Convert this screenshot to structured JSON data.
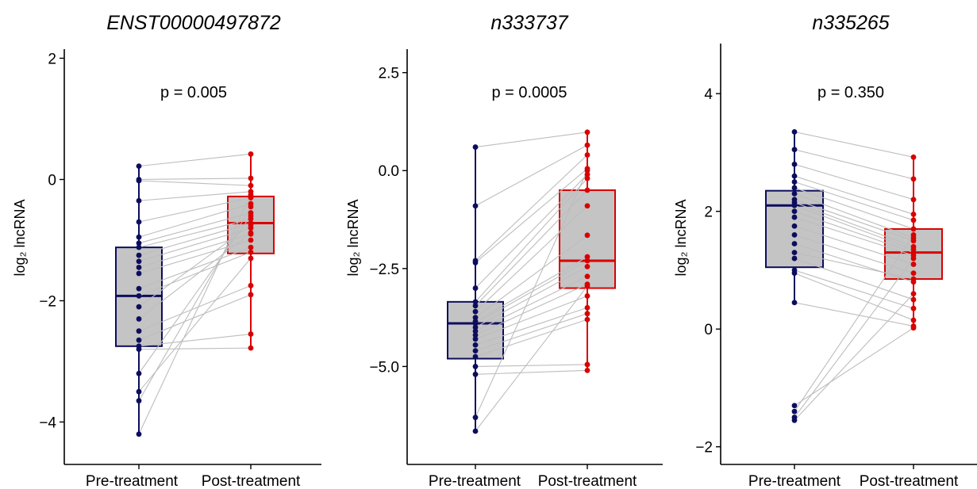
{
  "figure": {
    "colors": {
      "pre": "#0d0d5e",
      "post": "#d90000",
      "box_fill": "#c4c4c4",
      "pair_line": "#bdbdbd",
      "axis": "#000000"
    }
  },
  "chart_data": [
    {
      "type": "box",
      "title": "ENST00000497872",
      "annotation": "p = 0.005",
      "ylabel": "log₂ lncRNA",
      "categories": [
        "Pre-treatment",
        "Post-treatment"
      ],
      "yticks": [
        "2",
        "0",
        "−2",
        "−4"
      ],
      "ytick_values": [
        2,
        0,
        -2,
        -4
      ],
      "ylim": [
        -4.7,
        2.15
      ],
      "grid": false,
      "legend": "none",
      "boxes": [
        {
          "q1": -2.75,
          "median": -1.92,
          "q3": -1.12,
          "whisker_low": -4.2,
          "whisker_high": 0.22
        },
        {
          "q1": -1.22,
          "median": -0.72,
          "q3": -0.28,
          "whisker_low": -2.75,
          "whisker_high": 0.42
        }
      ],
      "series": [
        {
          "values": [
            0.22,
            0.0,
            -0.02,
            -0.35,
            -0.7,
            -0.95,
            -1.05,
            -1.12,
            -1.25,
            -1.35,
            -1.45,
            -1.55,
            -1.8,
            -1.92,
            -2.1,
            -2.3,
            -2.5,
            -2.65,
            -2.75,
            -2.8,
            -3.2,
            -3.5,
            -3.65,
            -4.2
          ]
        },
        {
          "values": [
            0.42,
            0.02,
            -0.1,
            -0.2,
            -0.3,
            -0.4,
            -0.55,
            -0.65,
            -0.72,
            -0.8,
            -0.9,
            -1.0,
            -1.12,
            -1.2,
            -0.75,
            -0.88,
            -1.75,
            -1.9,
            -2.55,
            -2.78,
            -0.6,
            -1.3,
            -0.45,
            -0.25
          ]
        }
      ]
    },
    {
      "type": "box",
      "title": "n333737",
      "annotation": "p = 0.0005",
      "ylabel": "log₂ lncRNA",
      "categories": [
        "Pre-treatment",
        "Post-treatment"
      ],
      "yticks": [
        "2.5",
        "0.0",
        "−2.5",
        "−5.0"
      ],
      "ytick_values": [
        2.5,
        0,
        -2.5,
        -5
      ],
      "ylim": [
        -7.5,
        3.1
      ],
      "grid": false,
      "legend": "none",
      "boxes": [
        {
          "q1": -4.8,
          "median": -3.9,
          "q3": -3.35,
          "whisker_low": -6.65,
          "whisker_high": 0.6
        },
        {
          "q1": -3.0,
          "median": -2.3,
          "q3": -0.5,
          "whisker_low": -5.1,
          "whisker_high": 0.98
        }
      ],
      "series": [
        {
          "values": [
            0.6,
            -0.9,
            -2.3,
            -2.35,
            -3.0,
            -3.35,
            -3.45,
            -3.6,
            -3.75,
            -3.85,
            -3.9,
            -4.0,
            -4.1,
            -4.2,
            -4.3,
            -4.45,
            -4.6,
            -4.75,
            -5.0,
            -5.2,
            -6.3,
            -6.65
          ]
        },
        {
          "values": [
            0.98,
            0.65,
            0.4,
            0.05,
            -0.1,
            -0.2,
            -0.5,
            -0.9,
            -1.65,
            -2.2,
            -2.3,
            -2.45,
            -2.7,
            -2.9,
            -3.2,
            -3.5,
            -3.65,
            -3.8,
            -4.95,
            -5.1,
            0.0,
            -2.95
          ]
        }
      ]
    },
    {
      "type": "box",
      "title": "n335265",
      "annotation": "p = 0.350",
      "ylabel": "log₂ lncRNA",
      "categories": [
        "Pre-treatment",
        "Post-treatment"
      ],
      "yticks": [
        "4",
        "2",
        "0",
        "−2"
      ],
      "ytick_values": [
        4,
        2,
        0,
        -2
      ],
      "ylim": [
        -2.3,
        4.85
      ],
      "grid": false,
      "legend": "none",
      "boxes": [
        {
          "q1": 1.05,
          "median": 2.1,
          "q3": 2.35,
          "whisker_low": 0.45,
          "whisker_high": 3.35
        },
        {
          "q1": 0.85,
          "median": 1.3,
          "q3": 1.7,
          "whisker_low": 0.02,
          "whisker_high": 2.92
        }
      ],
      "series": [
        {
          "values": [
            3.35,
            3.05,
            2.8,
            2.6,
            2.5,
            2.4,
            2.3,
            2.2,
            2.15,
            2.1,
            2.0,
            1.9,
            1.75,
            1.6,
            1.45,
            1.3,
            1.2,
            1.0,
            0.95,
            0.45,
            -1.3,
            -1.4,
            -1.5,
            -1.55
          ]
        },
        {
          "values": [
            2.92,
            2.55,
            2.2,
            1.95,
            1.85,
            1.7,
            1.55,
            1.5,
            1.4,
            1.35,
            1.3,
            1.25,
            1.1,
            0.95,
            0.8,
            0.85,
            0.5,
            0.35,
            0.15,
            0.05,
            0.02,
            1.6,
            1.2,
            0.6
          ]
        }
      ]
    }
  ]
}
